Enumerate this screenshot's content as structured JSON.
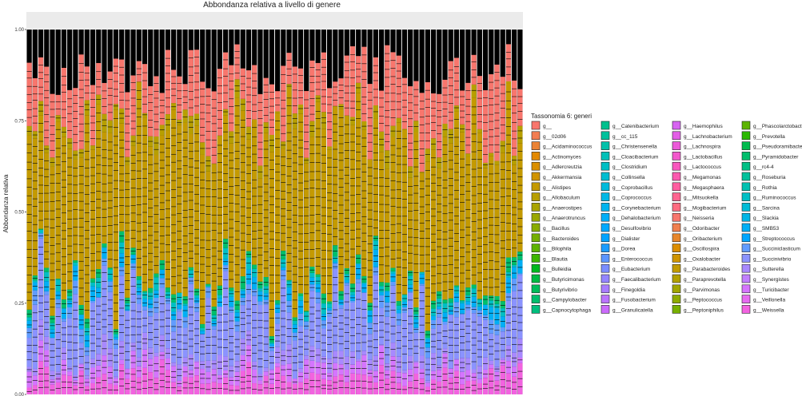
{
  "chart_data": {
    "type": "bar",
    "stacked": true,
    "title": "Abbondanza relativa a livello di genere",
    "ylabel": "Abbondanza relativa",
    "xlabel": "",
    "ylim": [
      0,
      1
    ],
    "yticks": [
      "0.00",
      "0.25",
      "0.50",
      "0.75",
      "1.00"
    ],
    "n_samples": 86,
    "legend": {
      "title": "Tassonomia 6: generi",
      "position": "right",
      "entries": [
        {
          "label": "g__",
          "color": "#F8766D"
        },
        {
          "label": "g__02d06",
          "color": "#F27D52"
        },
        {
          "label": "g__Acidaminococcus",
          "color": "#EB8335"
        },
        {
          "label": "g__Actinomyces",
          "color": "#E38900"
        },
        {
          "label": "g__Adlercreutzia",
          "color": "#DA8F00"
        },
        {
          "label": "g__Akkermansia",
          "color": "#D09400"
        },
        {
          "label": "g__Alistipes",
          "color": "#C49A00"
        },
        {
          "label": "g__Allobaculum",
          "color": "#B79F00"
        },
        {
          "label": "g__Anaerostipes",
          "color": "#A9A400"
        },
        {
          "label": "g__Anaerotruncus",
          "color": "#9AA800"
        },
        {
          "label": "g__Bacillus",
          "color": "#89AC00"
        },
        {
          "label": "g__Bacteroides",
          "color": "#75AF00"
        },
        {
          "label": "g__Bilophila",
          "color": "#5EB300"
        },
        {
          "label": "g__Blautia",
          "color": "#3DB600"
        },
        {
          "label": "g__Bulleidia",
          "color": "#00B81F"
        },
        {
          "label": "g__Butyricimonas",
          "color": "#00BA42"
        },
        {
          "label": "g__Butyrivibrio",
          "color": "#00BC59"
        },
        {
          "label": "g__Campylobacter",
          "color": "#00BE6C"
        },
        {
          "label": "g__Capnocytophaga",
          "color": "#00BF7D"
        },
        {
          "label": "g__Catenibacterium",
          "color": "#00C08D"
        },
        {
          "label": "g__cc_115",
          "color": "#00C19C"
        },
        {
          "label": "g__Christensenella",
          "color": "#00C1AA"
        },
        {
          "label": "g__Cloacibacterium",
          "color": "#00C0B8"
        },
        {
          "label": "g__Clostridium",
          "color": "#00BFC4"
        },
        {
          "label": "g__Collinsella",
          "color": "#00BDD0"
        },
        {
          "label": "g__Coprobacillus",
          "color": "#00BBDB"
        },
        {
          "label": "g__Coprococcus",
          "color": "#00B8E5"
        },
        {
          "label": "g__Corynebacterium",
          "color": "#00B4EF"
        },
        {
          "label": "g__Dehalobacterium",
          "color": "#00AFF8"
        },
        {
          "label": "g__Desulfovibrio",
          "color": "#00A9FF"
        },
        {
          "label": "g__Dialister",
          "color": "#00A3FF"
        },
        {
          "label": "g__Dorea",
          "color": "#1A9CFF"
        },
        {
          "label": "g__Enterococcus",
          "color": "#5B95FF"
        },
        {
          "label": "g__Eubacterium",
          "color": "#7A8DFF"
        },
        {
          "label": "g__Faecalibacterium",
          "color": "#9385FF"
        },
        {
          "label": "g__Finegoldia",
          "color": "#A87DFF"
        },
        {
          "label": "g__Fusobacterium",
          "color": "#BA74FF"
        },
        {
          "label": "g__Granulicatella",
          "color": "#CA6BFB"
        },
        {
          "label": "g__Haemophilus",
          "color": "#D764F1"
        },
        {
          "label": "g__Lachnobacterium",
          "color": "#E35EE6"
        },
        {
          "label": "g__Lachnospira",
          "color": "#EC5AD9"
        },
        {
          "label": "g__Lactobacillus",
          "color": "#F357CC"
        },
        {
          "label": "g__Lactococcus",
          "color": "#F957BE"
        },
        {
          "label": "g__Megamonas",
          "color": "#FC59AF"
        },
        {
          "label": "g__Megasphaera",
          "color": "#FF5EA0"
        },
        {
          "label": "g__Mitsuokella",
          "color": "#FF6490"
        },
        {
          "label": "g__Mogibacterium",
          "color": "#FF6B80"
        },
        {
          "label": "g__Neisseria",
          "color": "#F8766D"
        },
        {
          "label": "g__Odoribacter",
          "color": "#F07F4E"
        },
        {
          "label": "g__Oribacterium",
          "color": "#E7862B"
        },
        {
          "label": "g__Oscillospira",
          "color": "#DC8D00"
        },
        {
          "label": "g__Oxalobacter",
          "color": "#CF9400"
        },
        {
          "label": "g__Parabacteroides",
          "color": "#C19A00"
        },
        {
          "label": "g__Paraprevotella",
          "color": "#B2A000"
        },
        {
          "label": "g__Parvimonas",
          "color": "#A1A600"
        },
        {
          "label": "g__Peptococcus",
          "color": "#8EAB00"
        },
        {
          "label": "g__Peptoniphilus",
          "color": "#78B000"
        },
        {
          "label": "g__Phascolarctobacterium",
          "color": "#5CB400"
        },
        {
          "label": "g__Prevotella",
          "color": "#2BB800"
        },
        {
          "label": "g__Pseudoramibacter",
          "color": "#00BB4E"
        },
        {
          "label": "g__Pyramidobacter",
          "color": "#00BE6C"
        },
        {
          "label": "g__rc4-4",
          "color": "#00C085"
        },
        {
          "label": "g__Roseburia",
          "color": "#00C19B"
        },
        {
          "label": "g__Rothia",
          "color": "#00C1B0"
        },
        {
          "label": "g__Ruminococcus",
          "color": "#00BFC4"
        },
        {
          "label": "g__Sarcina",
          "color": "#00BCD6"
        },
        {
          "label": "g__Slackia",
          "color": "#00B6E6"
        },
        {
          "label": "g__SMB53",
          "color": "#00AFF5"
        },
        {
          "label": "g__Streptococcus",
          "color": "#00A6FF"
        },
        {
          "label": "g__Succiniclasticum",
          "color": "#619CFF"
        },
        {
          "label": "g__Succinivibrio",
          "color": "#8B93FF"
        },
        {
          "label": "g__Sutterella",
          "color": "#A889FF"
        },
        {
          "label": "g__Synergistes",
          "color": "#C17FFF"
        },
        {
          "label": "g__Turicibacter",
          "color": "#D575FE"
        },
        {
          "label": "g__Veillonella",
          "color": "#E66BF0"
        },
        {
          "label": "g__Weissella",
          "color": "#F263E0"
        }
      ],
      "visible_entries": [
        {
          "label": "g__",
          "color": "#F8766D"
        },
        {
          "label": "g__02d06",
          "color": "#F37B59"
        },
        {
          "label": "g__Acidaminococcus",
          "color": "#EC8239"
        },
        {
          "label": "g__Actinomyces",
          "color": "#E38900"
        },
        {
          "label": "g__Adlercreutzia",
          "color": "#D98E00"
        },
        {
          "label": "g__Akkermansia",
          "color": "#CF9400"
        },
        {
          "label": "g__Alistipes",
          "color": "#C49A00"
        },
        {
          "label": "g__Allobaculum",
          "color": "#B89F00"
        },
        {
          "label": "g__Anaerostipes",
          "color": "#ABA300"
        },
        {
          "label": "g__Anaerotruncus",
          "color": "#9DA700"
        },
        {
          "label": "g__Bacillus",
          "color": "#B79F00"
        },
        {
          "label": "g__Bacteroides",
          "color": "#C19A00"
        },
        {
          "label": "g__Bilophila",
          "color": "#B5A000"
        },
        {
          "label": "g__Blautia",
          "color": "#A8A400"
        },
        {
          "label": "g__Bulleidia",
          "color": "#9AA800"
        },
        {
          "label": "g__Butyricimonas",
          "color": "#8CAB00"
        },
        {
          "label": "g__Butyrivibrio",
          "color": "#7CAE00"
        },
        {
          "label": "g__Campylobacter",
          "color": "#68B100"
        },
        {
          "label": "g__Capnocytophaga",
          "color": "#52B500"
        },
        {
          "label": "g__Catenibacterium",
          "color": "#7CAE00"
        },
        {
          "label": "g__cc_115",
          "color": "#68B100"
        },
        {
          "label": "g__Christensenella",
          "color": "#52B500"
        },
        {
          "label": "g__Cloacibacterium",
          "color": "#35B800"
        },
        {
          "label": "g__Clostridium",
          "color": "#00BA38"
        },
        {
          "label": "g__Collinsella",
          "color": "#00BC52"
        },
        {
          "label": "g__Coprobacillus",
          "color": "#00BE67"
        },
        {
          "label": "g__Coprococcus",
          "color": "#00BF7A"
        },
        {
          "label": "g__Corynebacterium",
          "color": "#00C08B"
        },
        {
          "label": "g__Dehalobacterium",
          "color": "#00C19A"
        },
        {
          "label": "g__Desulfovibrio",
          "color": "#00C1A7"
        },
        {
          "label": "g__Dialister",
          "color": "#00C0B4"
        },
        {
          "label": "g__Dorea",
          "color": "#00BFBE"
        },
        {
          "label": "g__Enterococcus",
          "color": "#00BDC8"
        },
        {
          "label": "g__Eubacterium",
          "color": "#00BCD2"
        },
        {
          "label": "g__Faecalibacterium",
          "color": "#00B9DB"
        },
        {
          "label": "g__Finegoldia",
          "color": "#00B6E3"
        },
        {
          "label": "g__Fusobacterium",
          "color": "#00B3EB"
        },
        {
          "label": "g__Granulicatella",
          "color": "#00AEF3"
        },
        {
          "label": "g__Haemophilus",
          "color": "#00BCD8"
        },
        {
          "label": "g__Lachnobacterium",
          "color": "#00B8E5"
        },
        {
          "label": "g__Lachnospira",
          "color": "#00B4F0"
        },
        {
          "label": "g__Lactobacillus",
          "color": "#00AEFA"
        },
        {
          "label": "g__Lactococcus",
          "color": "#00A8FF"
        },
        {
          "label": "g__Megamonas",
          "color": "#30A0FF"
        },
        {
          "label": "g__Megasphaera",
          "color": "#5E97FF"
        },
        {
          "label": "g__Mitsuokella",
          "color": "#7B8EFF"
        },
        {
          "label": "g__Mogibacterium",
          "color": "#9385FF"
        },
        {
          "label": "g__Neisseria",
          "color": "#A97CFF"
        },
        {
          "label": "g__Odoribacter",
          "color": "#5E97FF"
        },
        {
          "label": "g__Oribacterium",
          "color": "#7B8EFF"
        },
        {
          "label": "g__Oscillospira",
          "color": "#9385FF"
        },
        {
          "label": "g__Oxalobacter",
          "color": "#A97CFF"
        },
        {
          "label": "g__Parabacteroides",
          "color": "#BC73FF"
        },
        {
          "label": "g__Paraprevotella",
          "color": "#CC6AFB"
        },
        {
          "label": "g__Parvimonas",
          "color": "#DA63F2"
        },
        {
          "label": "g__Peptococcus",
          "color": "#E65CE6"
        },
        {
          "label": "g__Peptoniphilus",
          "color": "#EF59D8"
        },
        {
          "label": "g__Phascolarctobacterium",
          "color": "#A97CFF"
        },
        {
          "label": "g__Prevotella",
          "color": "#BC73FF"
        },
        {
          "label": "g__Pseudoramibacter",
          "color": "#CC6AFB"
        },
        {
          "label": "g__Pyramidobacter",
          "color": "#DA63F2"
        },
        {
          "label": "g__rc4-4",
          "color": "#E65CE6"
        },
        {
          "label": "g__Roseburia",
          "color": "#EF59D8"
        },
        {
          "label": "g__Rothia",
          "color": "#F657C9"
        },
        {
          "label": "g__Ruminococcus",
          "color": "#FB58B9"
        },
        {
          "label": "g__Sarcina",
          "color": "#FE5CA8"
        },
        {
          "label": "g__Slackia",
          "color": "#FF6196"
        },
        {
          "label": "g__SMB53",
          "color": "#FF6785"
        },
        {
          "label": "g__Streptococcus",
          "color": "#F8766D"
        },
        {
          "label": "g__Succiniclasticum",
          "color": "#FF6785"
        },
        {
          "label": "g__Succinivibrio",
          "color": "#FF6196"
        },
        {
          "label": "g__Sutterella",
          "color": "#FE5CA8"
        },
        {
          "label": "g__Synergistes",
          "color": "#FB58B9"
        },
        {
          "label": "g__Turicibacter",
          "color": "#FF6785"
        },
        {
          "label": "g__Veillonella",
          "color": "#F8766D"
        },
        {
          "label": "g__Weissella",
          "color": "#F8766D"
        }
      ]
    }
  }
}
